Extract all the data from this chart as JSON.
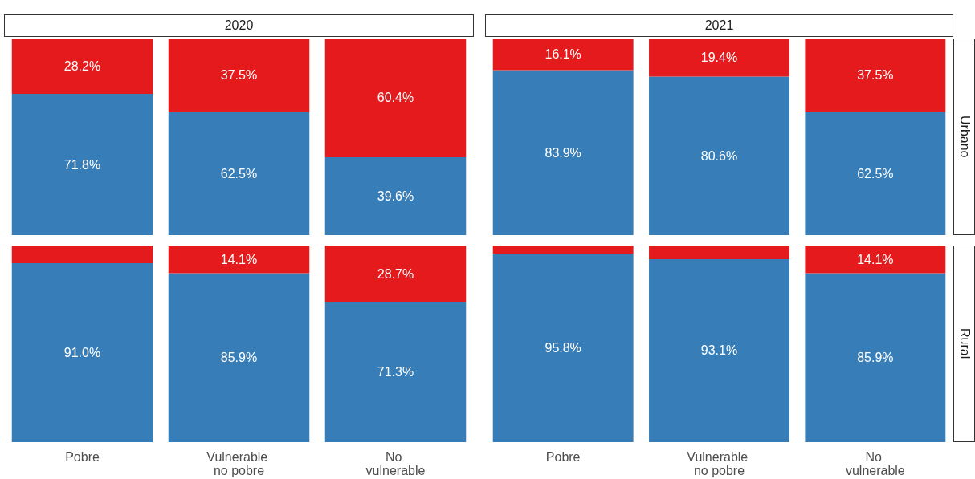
{
  "chart_data": [
    {
      "type": "bar",
      "title": "2020",
      "stacked": true,
      "tick_labels": false,
      "categories": [
        "Pobre",
        "Vulnerable no pobre",
        "No vulnerable"
      ],
      "ylim": [
        0,
        100
      ],
      "series": [
        {
          "color": "#377eb8",
          "values": [
            71.8,
            62.5,
            39.6
          ],
          "value_labels": [
            "71.8%",
            "62.5%",
            "39.6%"
          ]
        },
        {
          "color": "#e41a1c",
          "values": [
            28.2,
            37.5,
            60.4
          ],
          "value_labels": [
            "28.2%",
            "37.5%",
            "60.4%"
          ]
        }
      ]
    },
    {
      "type": "bar",
      "title": "2021",
      "y2label": "Urbano",
      "stacked": true,
      "tick_labels": false,
      "categories": [
        "Pobre",
        "Vulnerable no pobre",
        "No vulnerable"
      ],
      "ylim": [
        0,
        100
      ],
      "series": [
        {
          "color": "#377eb8",
          "values": [
            83.9,
            80.6,
            62.5
          ],
          "value_labels": [
            "83.9%",
            "80.6%",
            "62.5%"
          ]
        },
        {
          "color": "#e41a1c",
          "values": [
            16.1,
            19.4,
            37.5
          ],
          "value_labels": [
            "16.1%",
            "19.4%",
            "37.5%"
          ]
        }
      ]
    },
    {
      "type": "bar",
      "stacked": true,
      "tick_labels": "x",
      "categories": [
        "Pobre",
        "Vulnerable no pobre",
        "No vulnerable"
      ],
      "ylim": [
        0,
        100
      ],
      "series": [
        {
          "color": "#377eb8",
          "values": [
            91.0,
            85.9,
            71.3
          ],
          "value_labels": [
            "91.0%",
            "85.9%",
            "71.3%"
          ]
        },
        {
          "color": "#e41a1c",
          "values": [
            9.0,
            14.1,
            28.7
          ],
          "value_labels": [
            null,
            "14.1%",
            "28.7%"
          ]
        }
      ]
    },
    {
      "type": "bar",
      "y2label": "Rural",
      "stacked": true,
      "tick_labels": "x",
      "categories": [
        "Pobre",
        "Vulnerable no pobre",
        "No vulnerable"
      ],
      "ylim": [
        0,
        100
      ],
      "series": [
        {
          "color": "#377eb8",
          "values": [
            95.8,
            93.1,
            85.9
          ],
          "value_labels": [
            "95.8%",
            "93.1%",
            "85.9%"
          ]
        },
        {
          "color": "#e41a1c",
          "values": [
            4.2,
            6.9,
            14.1
          ],
          "value_labels": [
            null,
            null,
            "14.1%"
          ]
        }
      ]
    }
  ]
}
